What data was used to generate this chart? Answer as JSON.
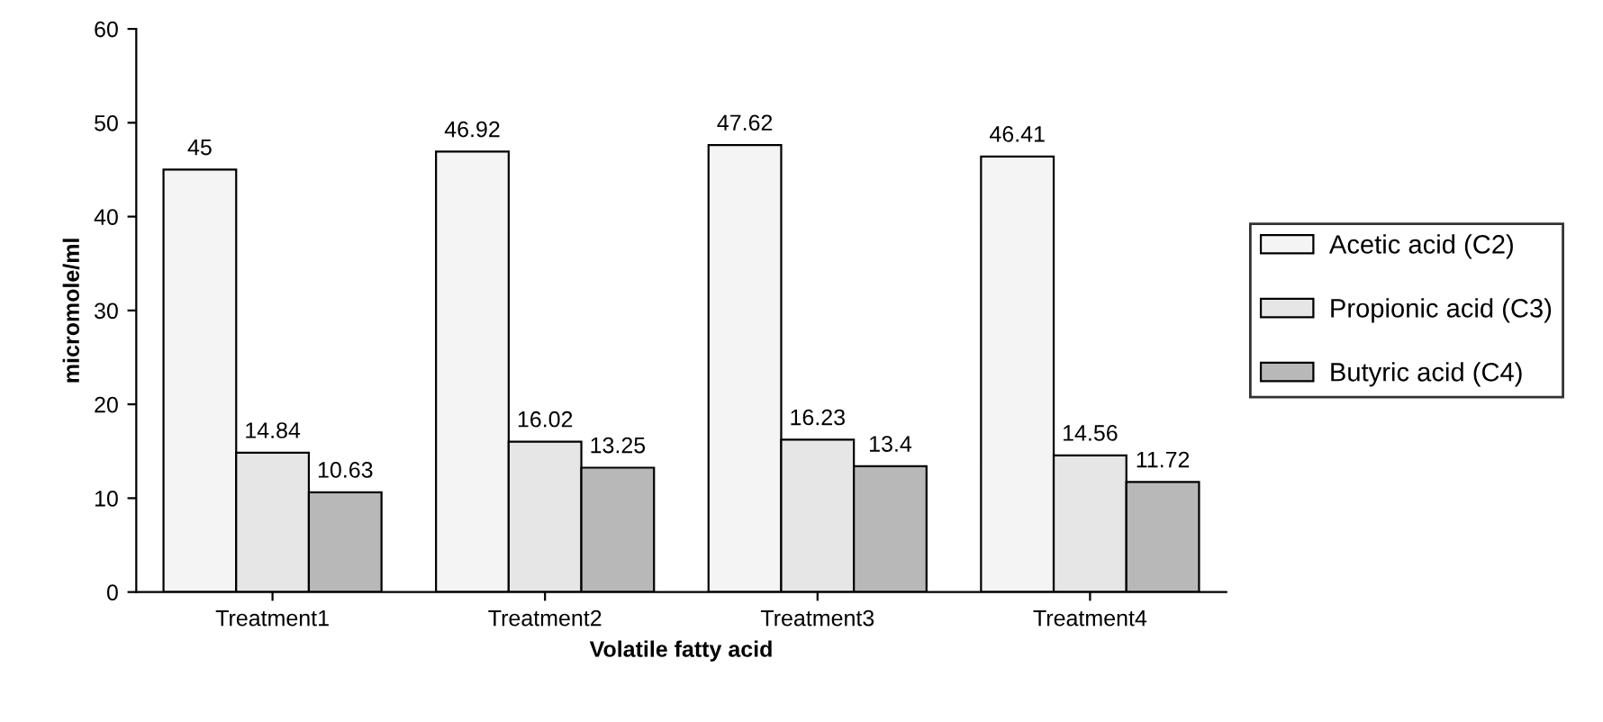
{
  "chart_data": {
    "type": "bar",
    "xlabel": "Volatile fatty acid",
    "ylabel": "micromole/ml",
    "categories": [
      "Treatment1",
      "Treatment2",
      "Treatment3",
      "Treatment4"
    ],
    "series": [
      {
        "name": "Acetic acid (C2)",
        "color": "#f4f4f4",
        "values": [
          45,
          46.92,
          47.62,
          46.41
        ]
      },
      {
        "name": "Propionic acid (C3)",
        "color": "#e6e6e6",
        "values": [
          14.84,
          16.02,
          16.23,
          14.56
        ]
      },
      {
        "name": "Butyric acid (C4)",
        "color": "#b8b8b8",
        "values": [
          10.63,
          13.25,
          13.4,
          11.72
        ]
      }
    ],
    "ylim": [
      0,
      60
    ],
    "yticks": [
      0,
      10,
      20,
      30,
      40,
      50,
      60
    ],
    "grid": false,
    "legend": "right",
    "data_labels": true
  }
}
